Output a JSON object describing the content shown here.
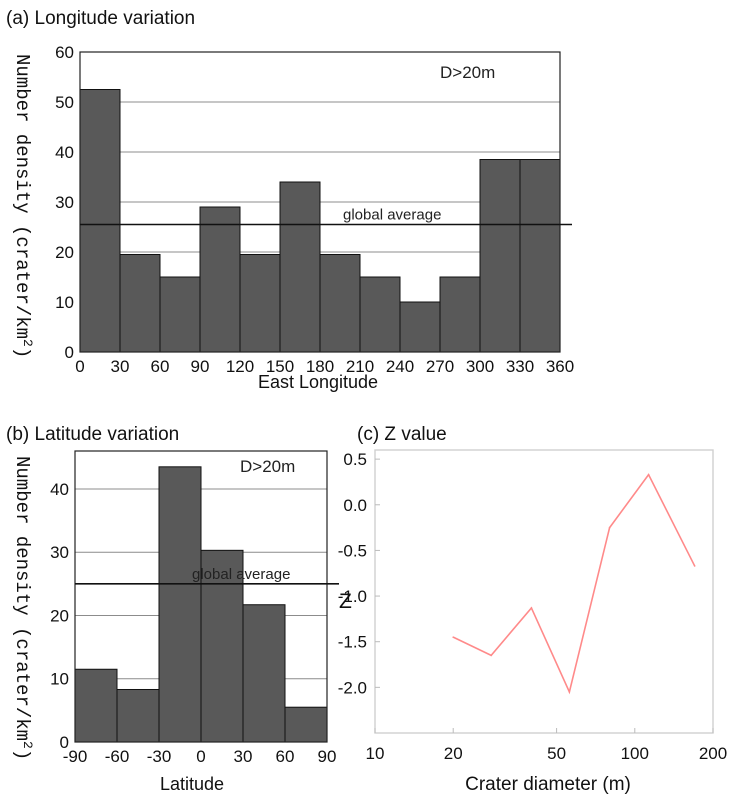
{
  "chart_data": [
    {
      "id": "longitude",
      "type": "bar",
      "title": "(a) Longitude variation",
      "xlabel": "East Longitude",
      "ylabel": "Number density (crater/km",
      "ylabel_sup": "2",
      "ylabel_close": ")",
      "annotation": "D>20m",
      "reference_line": {
        "label": "global average",
        "value": 25.5
      },
      "x_ticks": [
        "0",
        "30",
        "60",
        "90",
        "120",
        "150",
        "180",
        "210",
        "240",
        "270",
        "300",
        "330",
        "360"
      ],
      "bin_edges": [
        0,
        30,
        60,
        90,
        120,
        150,
        180,
        210,
        240,
        270,
        300,
        330,
        360
      ],
      "values": [
        52.5,
        19.5,
        15,
        29,
        19.5,
        34,
        19.5,
        15,
        10,
        15,
        38.5,
        38.5
      ],
      "xlim": [
        0,
        360
      ],
      "ylim": [
        0,
        60
      ],
      "y_ticks": [
        "0",
        "10",
        "20",
        "30",
        "40",
        "50",
        "60"
      ],
      "grid": "horizontal",
      "bar_color": "#595959"
    },
    {
      "id": "latitude",
      "type": "bar",
      "title": "(b) Latitude variation",
      "xlabel": "Latitude",
      "ylabel": "Number density (crater/km",
      "ylabel_sup": "2",
      "ylabel_close": ")",
      "annotation": "D>20m",
      "reference_line": {
        "label": "global average",
        "value": 25
      },
      "x_ticks": [
        "-90",
        "-60",
        "-30",
        "0",
        "30",
        "60",
        "90"
      ],
      "bin_edges": [
        -90,
        -60,
        -30,
        0,
        30,
        60,
        90
      ],
      "values": [
        11.5,
        8.3,
        43.5,
        30.3,
        21.7,
        5.5
      ],
      "xlim": [
        -90,
        90
      ],
      "ylim": [
        0,
        46
      ],
      "y_ticks": [
        "0",
        "10",
        "20",
        "30",
        "40"
      ],
      "y_tick_values": [
        0,
        10,
        20,
        30,
        40
      ],
      "grid": "horizontal",
      "bar_color": "#595959"
    },
    {
      "id": "zvalue",
      "type": "line",
      "title": "(c) Z value",
      "xlabel": "Crater diameter (m)",
      "ylabel": "Z",
      "x_scale": "log",
      "xlim": [
        10,
        200
      ],
      "ylim": [
        -2.5,
        0.6
      ],
      "x_ticks": [
        "10",
        "20",
        "50",
        "100",
        "200"
      ],
      "x_tick_values": [
        10,
        20,
        50,
        100,
        200
      ],
      "y_ticks": [
        "0.5",
        "0.0",
        "-0.5",
        "-1.0",
        "-1.5",
        "-2.0"
      ],
      "y_tick_values": [
        0.5,
        0.0,
        -0.5,
        -1.0,
        -1.5,
        -2.0
      ],
      "series": [
        {
          "x": [
            20,
            28,
            40,
            56,
            80,
            113,
            170
          ],
          "y": [
            -1.45,
            -1.65,
            -1.13,
            -2.05,
            -0.25,
            0.33,
            -0.67
          ],
          "color": "#ff8a8a"
        }
      ]
    }
  ]
}
